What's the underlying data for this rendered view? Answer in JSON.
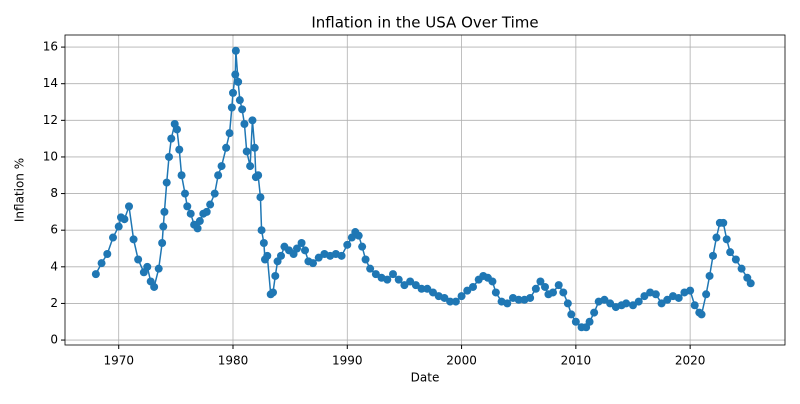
{
  "chart_data": {
    "type": "line",
    "title": "Inflation in the USA Over Time",
    "x_label": "Date",
    "y_label": "Inflation %",
    "x": [
      1968.0,
      1968.5,
      1969.0,
      1969.5,
      1970.0,
      1970.2,
      1970.5,
      1970.9,
      1971.3,
      1971.7,
      1972.2,
      1972.5,
      1972.8,
      1973.1,
      1973.5,
      1973.8,
      1973.9,
      1974.0,
      1974.2,
      1974.4,
      1974.6,
      1974.9,
      1975.1,
      1975.3,
      1975.5,
      1975.8,
      1976.0,
      1976.3,
      1976.6,
      1976.9,
      1977.1,
      1977.4,
      1977.7,
      1978.0,
      1978.4,
      1978.7,
      1979.0,
      1979.4,
      1979.7,
      1979.9,
      1980.0,
      1980.2,
      1980.25,
      1980.45,
      1980.6,
      1980.8,
      1981.0,
      1981.2,
      1981.5,
      1981.7,
      1981.9,
      1982.0,
      1982.2,
      1982.4,
      1982.5,
      1982.7,
      1982.8,
      1983.0,
      1983.3,
      1983.5,
      1983.7,
      1983.9,
      1984.2,
      1984.5,
      1984.9,
      1985.3,
      1985.6,
      1986.0,
      1986.3,
      1986.6,
      1987.0,
      1987.5,
      1988.0,
      1988.5,
      1989.0,
      1989.5,
      1990.0,
      1990.4,
      1990.7,
      1991.0,
      1991.3,
      1991.6,
      1992.0,
      1992.5,
      1993.0,
      1993.5,
      1994.0,
      1994.5,
      1995.0,
      1995.5,
      1996.0,
      1996.5,
      1997.0,
      1997.5,
      1998.0,
      1998.5,
      1999.0,
      1999.5,
      2000.0,
      2000.5,
      2001.0,
      2001.5,
      2001.9,
      2002.3,
      2002.7,
      2003.0,
      2003.5,
      2004.0,
      2004.5,
      2005.0,
      2005.5,
      2006.0,
      2006.5,
      2006.9,
      2007.3,
      2007.6,
      2008.0,
      2008.5,
      2008.9,
      2009.3,
      2009.6,
      2010.0,
      2010.5,
      2010.9,
      2011.2,
      2011.6,
      2012.0,
      2012.5,
      2013.0,
      2013.5,
      2014.0,
      2014.4,
      2015.0,
      2015.5,
      2016.0,
      2016.5,
      2017.0,
      2017.5,
      2018.0,
      2018.5,
      2019.0,
      2019.5,
      2020.0,
      2020.4,
      2020.8,
      2021.0,
      2021.4,
      2021.7,
      2022.0,
      2022.3,
      2022.6,
      2022.9,
      2023.2,
      2023.5,
      2024.0,
      2024.5,
      2025.0,
      2025.3
    ],
    "series": [
      {
        "name": "Inflation",
        "color": "#1f77b4",
        "values": [
          3.6,
          4.2,
          4.7,
          5.6,
          6.2,
          6.7,
          6.6,
          7.3,
          5.5,
          4.4,
          3.7,
          4.0,
          3.2,
          2.9,
          3.9,
          5.3,
          6.2,
          7.0,
          8.6,
          10.0,
          11.0,
          11.8,
          11.5,
          10.4,
          9.0,
          8.0,
          7.3,
          6.9,
          6.3,
          6.1,
          6.5,
          6.9,
          7.0,
          7.4,
          8.0,
          9.0,
          9.5,
          10.5,
          11.3,
          12.7,
          13.5,
          14.5,
          15.8,
          14.1,
          13.1,
          12.6,
          11.8,
          10.3,
          9.5,
          12.0,
          10.5,
          8.9,
          9.0,
          7.8,
          6.0,
          5.3,
          4.4,
          4.6,
          2.5,
          2.6,
          3.5,
          4.3,
          4.6,
          5.1,
          4.9,
          4.7,
          5.0,
          5.3,
          4.9,
          4.3,
          4.2,
          4.5,
          4.7,
          4.6,
          4.7,
          4.6,
          5.2,
          5.6,
          5.9,
          5.7,
          5.1,
          4.4,
          3.9,
          3.6,
          3.4,
          3.3,
          3.6,
          3.3,
          3.0,
          3.2,
          3.0,
          2.8,
          2.8,
          2.6,
          2.4,
          2.3,
          2.1,
          2.1,
          2.4,
          2.7,
          2.9,
          3.3,
          3.5,
          3.4,
          3.2,
          2.6,
          2.1,
          2.0,
          2.3,
          2.2,
          2.2,
          2.3,
          2.8,
          3.2,
          2.9,
          2.5,
          2.6,
          3.0,
          2.6,
          2.0,
          1.4,
          1.0,
          0.7,
          0.7,
          1.0,
          1.5,
          2.1,
          2.2,
          2.0,
          1.8,
          1.9,
          2.0,
          1.9,
          2.1,
          2.4,
          2.6,
          2.5,
          2.0,
          2.2,
          2.4,
          2.3,
          2.6,
          2.7,
          1.9,
          1.5,
          1.4,
          2.5,
          3.5,
          4.6,
          5.6,
          6.4,
          6.4,
          5.5,
          4.8,
          4.4,
          3.9,
          3.4,
          3.1
        ]
      }
    ],
    "xlim": [
      1965.3,
      2028.3
    ],
    "ylim": [
      -0.27,
      16.66
    ],
    "xticks": [
      1970,
      1980,
      1990,
      2000,
      2010,
      2020
    ],
    "yticks": [
      0,
      2,
      4,
      6,
      8,
      10,
      12,
      14,
      16
    ],
    "grid": true
  }
}
